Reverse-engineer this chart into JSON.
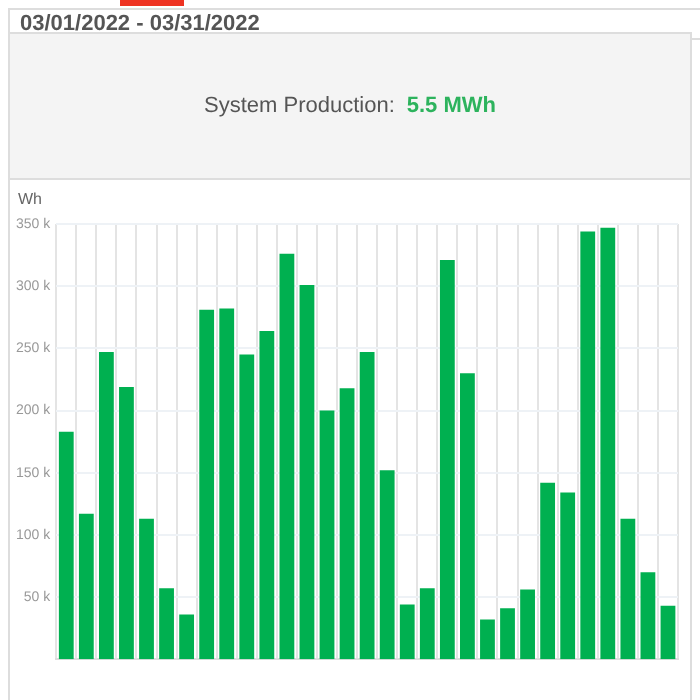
{
  "chart_data": {
    "type": "bar",
    "title": "03/01/2022 - 03/31/2022",
    "annotations": [
      "System Production:",
      "5.5 MWh"
    ],
    "ylabel": "Wh",
    "categories": [
      null,
      null,
      null,
      null,
      null,
      null,
      null,
      null,
      null,
      null,
      null,
      null,
      null,
      null,
      null,
      null,
      null,
      null,
      null,
      null,
      null,
      null,
      null,
      null,
      null,
      null,
      null,
      null,
      null,
      null,
      null
    ],
    "values": [
      183000,
      117000,
      247000,
      219000,
      113000,
      57000,
      36000,
      281000,
      282000,
      245000,
      264000,
      326000,
      301000,
      200000,
      218000,
      247000,
      152000,
      44000,
      57000,
      321000,
      230000,
      32000,
      41000,
      56000,
      142000,
      134000,
      344000,
      347000,
      113000,
      70000,
      43000
    ],
    "color": "#00b050",
    "ylim": [
      0,
      350000
    ],
    "yticks": [
      {
        "value": 50000,
        "label": "50 k"
      },
      {
        "value": 100000,
        "label": "100 k"
      },
      {
        "value": 150000,
        "label": "150 k"
      },
      {
        "value": 200000,
        "label": "200 k"
      },
      {
        "value": 250000,
        "label": "250 k"
      },
      {
        "value": 300000,
        "label": "300 k"
      },
      {
        "value": 350000,
        "label": "350 k"
      }
    ],
    "grid": true,
    "legend": false
  }
}
